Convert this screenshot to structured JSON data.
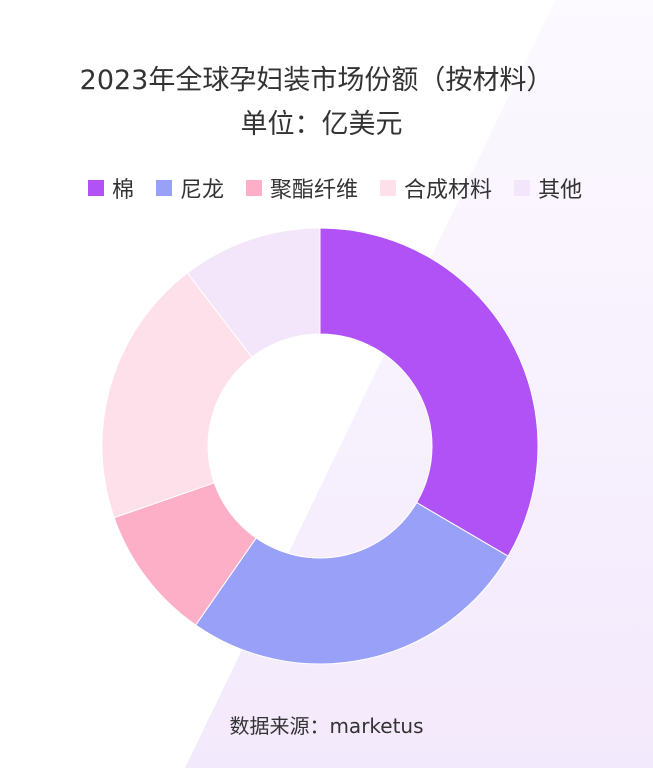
{
  "chart_data": {
    "type": "pie",
    "variant": "donut",
    "title": "2023年全球孕妇装市场份额（按材料）",
    "subtitle": "单位：亿美元",
    "categories": [
      "棉",
      "尼龙",
      "聚酯纤维",
      "合成材料",
      "其他"
    ],
    "values": [
      33.4,
      26.2,
      10.0,
      19.9,
      10.4
    ],
    "colors": [
      "#b152f7",
      "#98a0f8",
      "#fdafc8",
      "#fde0e9",
      "#f3e6fb"
    ],
    "legend_position": "top",
    "source": "数据来源：marketus"
  }
}
